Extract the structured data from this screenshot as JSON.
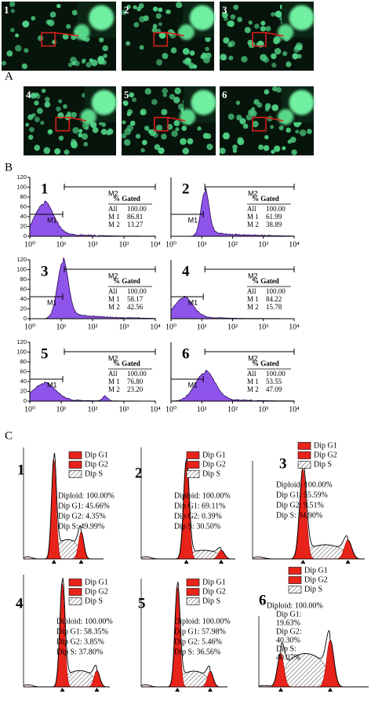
{
  "panel_a": {
    "label": "A",
    "images": [
      {
        "label": "1"
      },
      {
        "label": "2"
      },
      {
        "label": "3"
      },
      {
        "label": "4"
      },
      {
        "label": "5"
      },
      {
        "label": "6"
      }
    ]
  },
  "panel_b": {
    "label": "B",
    "yticks": [
      "0",
      "20",
      "40",
      "60",
      "80",
      "100",
      "120"
    ],
    "xticks": [
      "10⁰",
      "10¹",
      "10²",
      "10³",
      "10⁴"
    ],
    "plots": [
      {
        "label": "1",
        "gate1": "M1",
        "gate2": "M2",
        "table_header": "% Gated",
        "rows": [
          [
            "All",
            "100.00"
          ],
          [
            "M 1",
            "86.81"
          ],
          [
            "M 2",
            "13.27"
          ]
        ]
      },
      {
        "label": "2",
        "gate1": "M1",
        "gate2": "M2",
        "table_header": "% Gated",
        "rows": [
          [
            "All",
            "100.00"
          ],
          [
            "M 1",
            "61.99"
          ],
          [
            "M 2",
            "38.89"
          ]
        ]
      },
      {
        "label": "3",
        "gate1": "M1",
        "gate2": "M2",
        "table_header": "% Gated",
        "rows": [
          [
            "All",
            "100.00"
          ],
          [
            "M 1",
            "58.17"
          ],
          [
            "M 2",
            "42.56"
          ]
        ]
      },
      {
        "label": "4",
        "gate1": "M1",
        "gate2": "M2",
        "table_header": "% Gated",
        "rows": [
          [
            "All",
            "100.00"
          ],
          [
            "M 1",
            "84.22"
          ],
          [
            "M 2",
            "15.78"
          ]
        ]
      },
      {
        "label": "5",
        "gate1": "M1",
        "gate2": "M2",
        "table_header": "% Gated",
        "rows": [
          [
            "All",
            "100.00"
          ],
          [
            "M 1",
            "76.80"
          ],
          [
            "M 2",
            "23.20"
          ]
        ]
      },
      {
        "label": "6",
        "gate1": "M1",
        "gate2": "M2",
        "table_header": "% Gated",
        "rows": [
          [
            "All",
            "100.00"
          ],
          [
            "M 1",
            "53.55"
          ],
          [
            "M 2",
            "47.09"
          ]
        ]
      }
    ]
  },
  "panel_c": {
    "label": "C",
    "legend": [
      "Dip G1",
      "Dip G2",
      "Dip S"
    ],
    "plots": [
      {
        "label": "1",
        "stats": [
          "Diploid: 100.00%",
          "Dip G1: 45.66%",
          "Dip G2: 4.35%",
          "Dip S: 49.99%"
        ]
      },
      {
        "label": "2",
        "stats": [
          "Diploid: 100.00%",
          "Dip G1: 69.11%",
          "Dip G2: 0.39%",
          "Dip S: 30.50%"
        ]
      },
      {
        "label": "3",
        "stats": [
          "Diploid: 100.00%",
          "Dip G1: 55.59%",
          "Dip G2: 9.51%",
          "Dip S: 34.90%"
        ]
      },
      {
        "label": "4",
        "stats": [
          "Diploid: 100.00%",
          "Dip G1: 58.35%",
          "Dip G2: 3.85%",
          "Dip S: 37.80%"
        ]
      },
      {
        "label": "5",
        "stats": [
          "Diploid: 100.00%",
          "Dip G1: 57.98%",
          "Dip G2: 5.46%",
          "Dip S: 36.56%"
        ]
      },
      {
        "label": "6",
        "stats": [
          "Diploid: 100.00%",
          "Dip G1:",
          "19.63%",
          "Dip G2:",
          "40.30%",
          "Dip S:",
          "40.07%"
        ]
      }
    ]
  }
}
